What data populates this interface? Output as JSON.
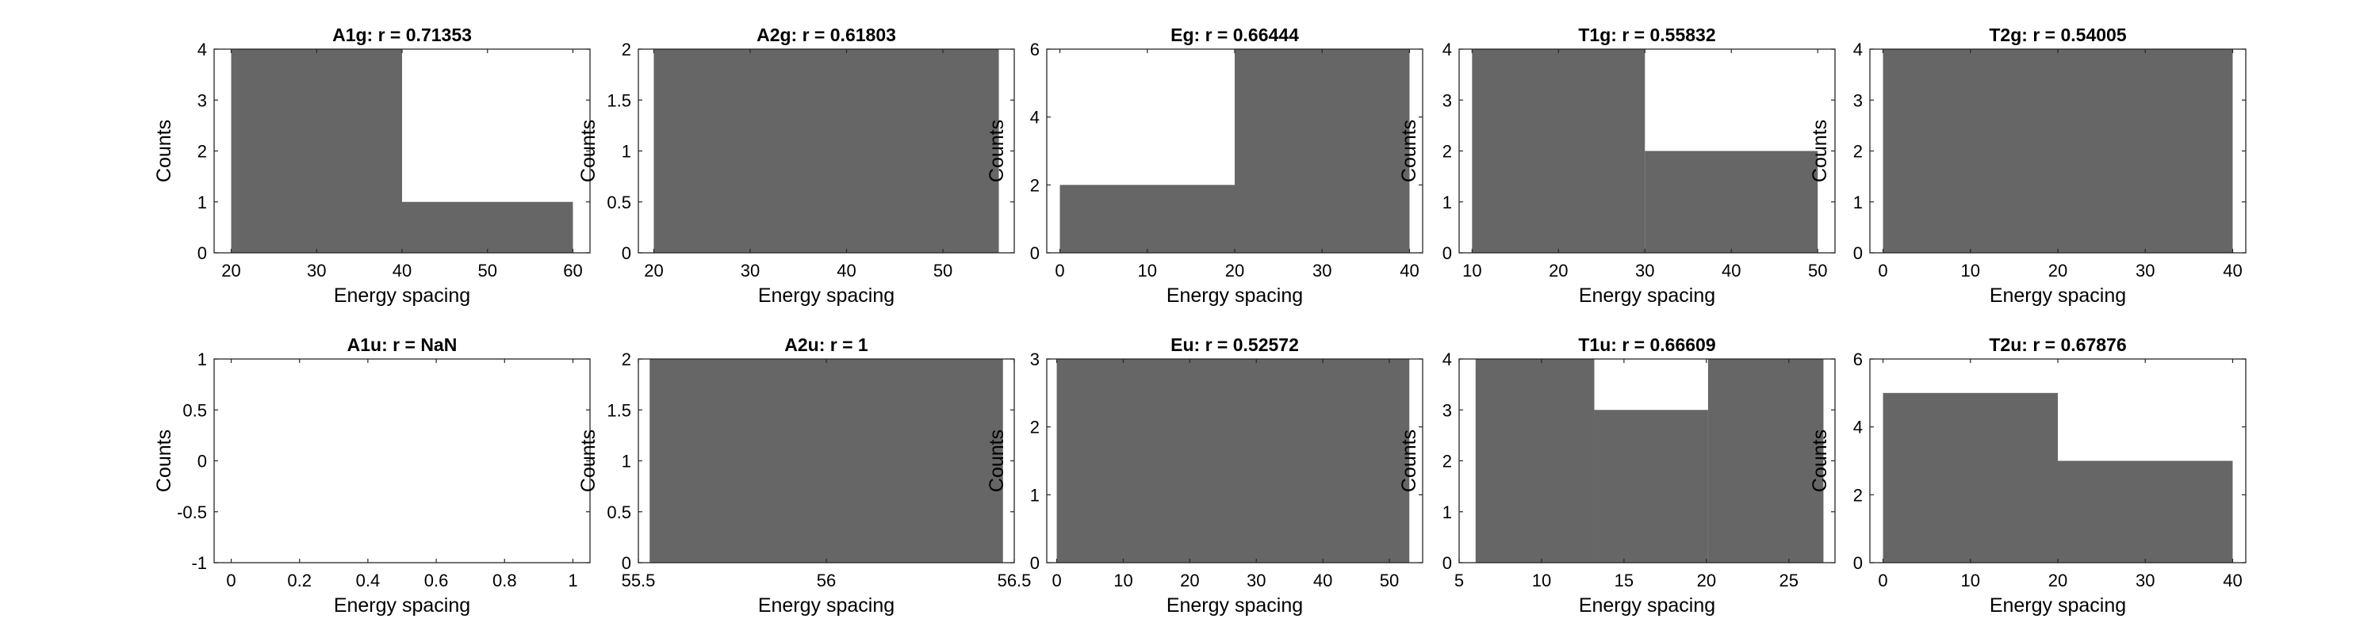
{
  "figure": {
    "bar_color": "#666666",
    "axes_color": "#262626",
    "background": "#ffffff"
  },
  "chart_data": [
    {
      "type": "bar",
      "title": "A1g: r = 0.71353",
      "xlabel": "Energy spacing",
      "ylabel": "Counts",
      "xlim": [
        18,
        62
      ],
      "ylim": [
        0,
        4
      ],
      "xticks": [
        20,
        30,
        40,
        50,
        60
      ],
      "yticks": [
        0,
        1,
        2,
        3,
        4
      ],
      "bins": [
        {
          "x0": 20,
          "x1": 40,
          "count": 4
        },
        {
          "x0": 40,
          "x1": 60,
          "count": 1
        }
      ]
    },
    {
      "type": "bar",
      "title": "A2g: r = 0.61803",
      "xlabel": "Energy spacing",
      "ylabel": "Counts",
      "xlim": [
        18.4,
        57.4
      ],
      "ylim": [
        0,
        2
      ],
      "xticks": [
        20,
        30,
        40,
        50
      ],
      "yticks": [
        0,
        0.5,
        1,
        1.5,
        2
      ],
      "bins": [
        {
          "x0": 20,
          "x1": 55.8,
          "count": 2
        }
      ]
    },
    {
      "type": "bar",
      "title": "Eg: r = 0.66444",
      "xlabel": "Energy spacing",
      "ylabel": "Counts",
      "xlim": [
        -1.5,
        41.5
      ],
      "ylim": [
        0,
        6
      ],
      "xticks": [
        0,
        10,
        20,
        30,
        40
      ],
      "yticks": [
        0,
        2,
        4,
        6
      ],
      "bins": [
        {
          "x0": 0,
          "x1": 20,
          "count": 2
        },
        {
          "x0": 20,
          "x1": 40,
          "count": 6
        }
      ]
    },
    {
      "type": "bar",
      "title": "T1g: r = 0.55832",
      "xlabel": "Energy spacing",
      "ylabel": "Counts",
      "xlim": [
        8.5,
        52
      ],
      "ylim": [
        0,
        4
      ],
      "xticks": [
        10,
        20,
        30,
        40,
        50
      ],
      "yticks": [
        0,
        1,
        2,
        3,
        4
      ],
      "bins": [
        {
          "x0": 10,
          "x1": 30,
          "count": 4
        },
        {
          "x0": 30,
          "x1": 50,
          "count": 2
        }
      ]
    },
    {
      "type": "bar",
      "title": "T2g: r = 0.54005",
      "xlabel": "Energy spacing",
      "ylabel": "Counts",
      "xlim": [
        -1.5,
        41.5
      ],
      "ylim": [
        0,
        4
      ],
      "xticks": [
        0,
        10,
        20,
        30,
        40
      ],
      "yticks": [
        0,
        1,
        2,
        3,
        4
      ],
      "bins": [
        {
          "x0": 0,
          "x1": 40,
          "count": 4
        }
      ]
    },
    {
      "type": "bar",
      "title": "A1u: r = NaN",
      "xlabel": "Energy spacing",
      "ylabel": "Counts",
      "xlim": [
        -0.05,
        1.05
      ],
      "ylim": [
        -1,
        1
      ],
      "xticks": [
        0,
        0.2,
        0.4,
        0.6,
        0.8,
        1
      ],
      "yticks": [
        -1,
        -0.5,
        0,
        0.5,
        1
      ],
      "bins": []
    },
    {
      "type": "bar",
      "title": "A2u: r = 1",
      "xlabel": "Energy spacing",
      "ylabel": "Counts",
      "xlim": [
        55.5,
        56.5
      ],
      "ylim": [
        0,
        2
      ],
      "xticks": [
        55.5,
        56,
        56.5
      ],
      "yticks": [
        0,
        0.5,
        1,
        1.5,
        2
      ],
      "bins": [
        {
          "x0": 55.53,
          "x1": 56.47,
          "count": 2
        }
      ]
    },
    {
      "type": "bar",
      "title": "Eu: r = 0.52572",
      "xlabel": "Energy spacing",
      "ylabel": "Counts",
      "xlim": [
        -1.5,
        55
      ],
      "ylim": [
        0,
        3
      ],
      "xticks": [
        0,
        10,
        20,
        30,
        40,
        50
      ],
      "yticks": [
        0,
        1,
        2,
        3
      ],
      "bins": [
        {
          "x0": 0,
          "x1": 53,
          "count": 3
        }
      ]
    },
    {
      "type": "bar",
      "title": "T1u: r = 0.66609",
      "xlabel": "Energy spacing",
      "ylabel": "Counts",
      "xlim": [
        5,
        27.8
      ],
      "ylim": [
        0,
        4
      ],
      "xticks": [
        5,
        10,
        15,
        20,
        25
      ],
      "yticks": [
        0,
        1,
        2,
        3,
        4
      ],
      "bins": [
        {
          "x0": 6,
          "x1": 13.2,
          "count": 4
        },
        {
          "x0": 13.2,
          "x1": 20.1,
          "count": 3
        },
        {
          "x0": 20.1,
          "x1": 27.1,
          "count": 4
        }
      ]
    },
    {
      "type": "bar",
      "title": "T2u: r = 0.67876",
      "xlabel": "Energy spacing",
      "ylabel": "Counts",
      "xlim": [
        -1.5,
        41.5
      ],
      "ylim": [
        0,
        6
      ],
      "xticks": [
        0,
        10,
        20,
        30,
        40
      ],
      "yticks": [
        0,
        2,
        4,
        6
      ],
      "bins": [
        {
          "x0": 0,
          "x1": 20,
          "count": 5
        },
        {
          "x0": 20,
          "x1": 40,
          "count": 3
        }
      ]
    }
  ]
}
